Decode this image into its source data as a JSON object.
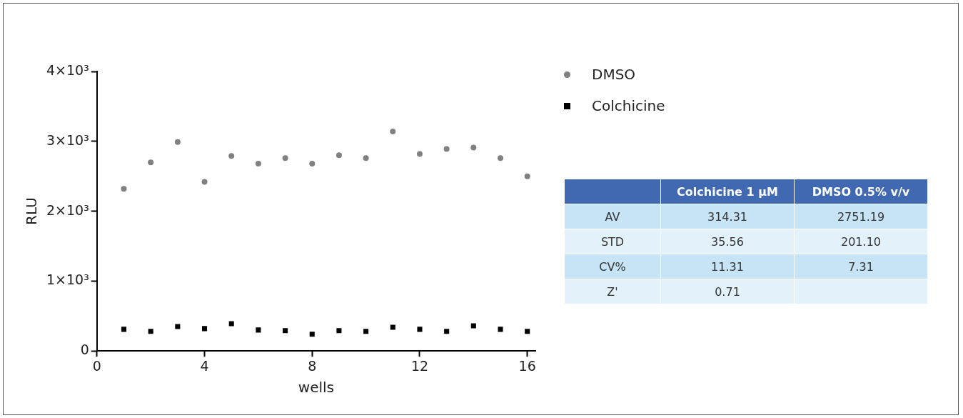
{
  "chart_data": [
    {
      "type": "scatter",
      "xlabel": "wells",
      "ylabel": "RLU",
      "x": [
        1,
        2,
        3,
        4,
        5,
        6,
        7,
        8,
        9,
        10,
        11,
        12,
        13,
        14,
        15,
        16
      ],
      "series": [
        {
          "name": "DMSO",
          "color": "#808080",
          "marker": "circle",
          "values": [
            2320,
            2700,
            2990,
            2420,
            2790,
            2680,
            2760,
            2680,
            2800,
            2760,
            3140,
            2820,
            2890,
            2910,
            2760,
            2500
          ]
        },
        {
          "name": "Colchicine",
          "color": "#000000",
          "marker": "square",
          "values": [
            310,
            280,
            350,
            320,
            390,
            300,
            290,
            240,
            290,
            280,
            340,
            310,
            280,
            360,
            310,
            280
          ]
        }
      ],
      "xlim": [
        0,
        16.3
      ],
      "xticks": [
        0,
        4,
        8,
        12,
        16
      ],
      "ylim": [
        0,
        4000
      ],
      "yticks": [
        0,
        {
          "value": 1000,
          "label": "1×10³"
        },
        {
          "value": 2000,
          "label": "2×10³"
        },
        {
          "value": 3000,
          "label": "3×10³"
        },
        {
          "value": 4000,
          "label": "4×10³"
        }
      ],
      "grid": false,
      "legend": "top right"
    },
    {
      "type": "other",
      "categories": [
        null,
        "Colchicine 1 µM",
        "DMSO 0.5% v/v"
      ],
      "y_categories": [
        "AV",
        "STD",
        "CV%",
        "Z'"
      ],
      "cell_labels": [
        [
          "314.31",
          "2751.19"
        ],
        [
          "35.56",
          "201.10"
        ],
        [
          "11.31",
          "7.31"
        ],
        [
          "0.71",
          null
        ]
      ]
    }
  ]
}
